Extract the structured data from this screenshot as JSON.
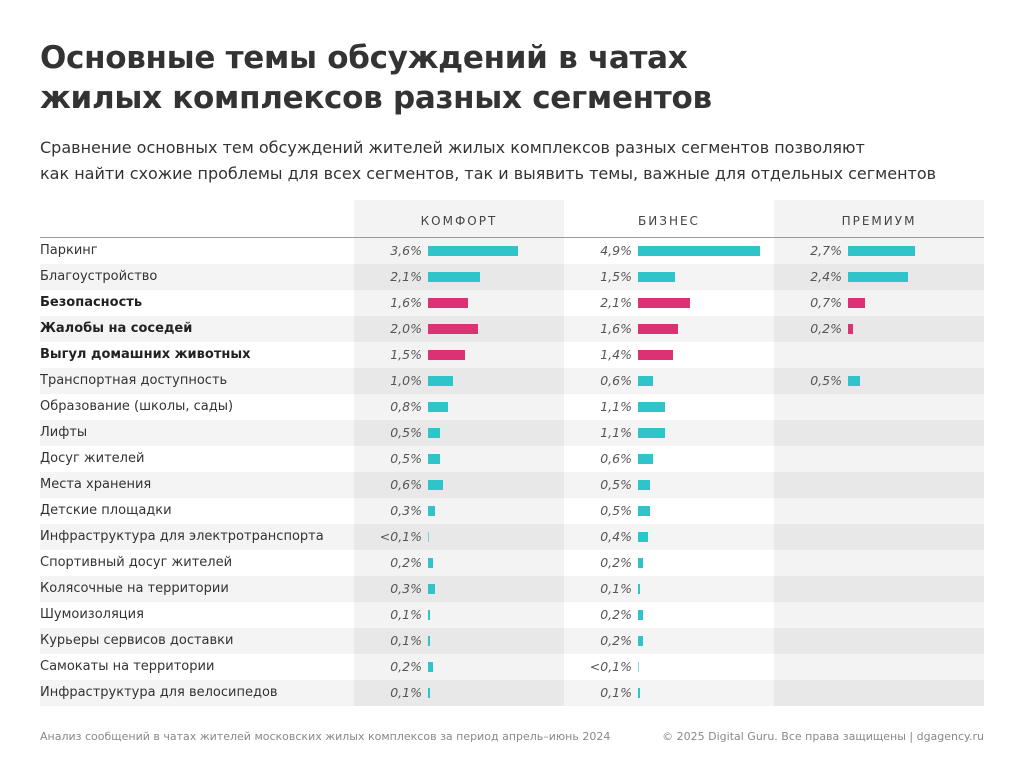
{
  "colors": {
    "teal": "#2ec4c9",
    "pink": "#dc3274"
  },
  "chart_data": {
    "type": "bar",
    "title": "Основные темы обсуждений в чатах жилых комплексов разных сегментов",
    "title_lines": [
      "Основные темы обсуждений в чатах",
      "жилых комплексов разных сегментов"
    ],
    "subtitle_lines": [
      "Сравнение основных тем обсуждений жителей жилых комплексов разных сегментов позволяют",
      "как найти схожие проблемы для всех сегментов, так и выявить темы, важные для отдельных сегментов"
    ],
    "unit": "%",
    "series_names": [
      "КОМФОРТ",
      "БИЗНЕС",
      "ПРЕМИУМ"
    ],
    "rows": [
      {
        "label": "Паркинг",
        "highlight": false,
        "values": [
          3.6,
          4.9,
          2.7
        ],
        "labels": [
          "3,6%",
          "4,9%",
          "2,7%"
        ]
      },
      {
        "label": "Благоустройство",
        "highlight": false,
        "values": [
          2.1,
          1.5,
          2.4
        ],
        "labels": [
          "2,1%",
          "1,5%",
          "2,4%"
        ]
      },
      {
        "label": "Безопасность",
        "highlight": true,
        "values": [
          1.6,
          2.1,
          0.7
        ],
        "labels": [
          "1,6%",
          "2,1%",
          "0,7%"
        ]
      },
      {
        "label": "Жалобы на соседей",
        "highlight": true,
        "values": [
          2.0,
          1.6,
          0.2
        ],
        "labels": [
          "2,0%",
          "1,6%",
          "0,2%"
        ]
      },
      {
        "label": "Выгул домашних животных",
        "highlight": true,
        "values": [
          1.5,
          1.4,
          null
        ],
        "labels": [
          "1,5%",
          "1,4%",
          ""
        ]
      },
      {
        "label": "Транспортная доступность",
        "highlight": false,
        "values": [
          1.0,
          0.6,
          0.5
        ],
        "labels": [
          "1,0%",
          "0,6%",
          "0,5%"
        ]
      },
      {
        "label": "Образование (школы, сады)",
        "highlight": false,
        "values": [
          0.8,
          1.1,
          null
        ],
        "labels": [
          "0,8%",
          "1,1%",
          ""
        ]
      },
      {
        "label": "Лифты",
        "highlight": false,
        "values": [
          0.5,
          1.1,
          null
        ],
        "labels": [
          "0,5%",
          "1,1%",
          ""
        ]
      },
      {
        "label": "Досуг жителей",
        "highlight": false,
        "values": [
          0.5,
          0.6,
          null
        ],
        "labels": [
          "0,5%",
          "0,6%",
          ""
        ]
      },
      {
        "label": "Места хранения",
        "highlight": false,
        "values": [
          0.6,
          0.5,
          null
        ],
        "labels": [
          "0,6%",
          "0,5%",
          ""
        ]
      },
      {
        "label": "Детские площадки",
        "highlight": false,
        "values": [
          0.3,
          0.5,
          null
        ],
        "labels": [
          "0,3%",
          "0,5%",
          ""
        ]
      },
      {
        "label": "Инфраструктура для электротранспорта",
        "highlight": false,
        "values": [
          0.05,
          0.4,
          null
        ],
        "labels": [
          "<0,1%",
          "0,4%",
          ""
        ]
      },
      {
        "label": "Спортивный досуг жителей",
        "highlight": false,
        "values": [
          0.2,
          0.2,
          null
        ],
        "labels": [
          "0,2%",
          "0,2%",
          ""
        ]
      },
      {
        "label": "Колясочные на территории",
        "highlight": false,
        "values": [
          0.3,
          0.1,
          null
        ],
        "labels": [
          "0,3%",
          "0,1%",
          ""
        ]
      },
      {
        "label": "Шумоизоляция",
        "highlight": false,
        "values": [
          0.1,
          0.2,
          null
        ],
        "labels": [
          "0,1%",
          "0,2%",
          ""
        ]
      },
      {
        "label": "Курьеры сервисов доставки",
        "highlight": false,
        "values": [
          0.1,
          0.2,
          null
        ],
        "labels": [
          "0,1%",
          "0,2%",
          ""
        ]
      },
      {
        "label": "Самокаты на территории",
        "highlight": false,
        "values": [
          0.2,
          0.05,
          null
        ],
        "labels": [
          "0,2%",
          "<0,1%",
          ""
        ]
      },
      {
        "label": "Инфраструктура для велосипедов",
        "highlight": false,
        "values": [
          0.1,
          0.1,
          null
        ],
        "labels": [
          "0,1%",
          "0,1%",
          ""
        ]
      }
    ],
    "xlim": [
      0,
      4.9
    ]
  },
  "footer": {
    "source": "Анализ сообщений в чатах жителей московских жилых комплексов за период апрель–июнь 2024",
    "copyright": "© 2025 Digital Guru. Все права защищены | dgagency.ru"
  }
}
